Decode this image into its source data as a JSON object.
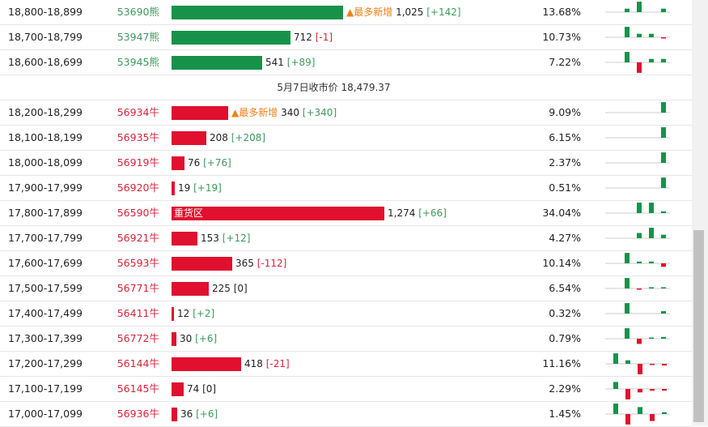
{
  "header_note_label": "▲最多新增",
  "heavy_label": "重货区",
  "colors": {
    "green": "#17924a",
    "red": "#e0102e",
    "note": "#ef7f1a"
  },
  "max_bar_value": 1274,
  "separator": {
    "text": "5月7日收市价 18,479.37"
  },
  "rows": [
    {
      "range": "18,800-18,899",
      "code": "53690熊",
      "side": "bear",
      "value": 1025,
      "value_text": "1,025",
      "change": "[+142]",
      "change_dir": "up",
      "pct": "13.68%",
      "note": "▲最多新增",
      "spark": [
        1,
        3,
        0,
        1
      ],
      "spark_sign": [
        1,
        1,
        1,
        1
      ]
    },
    {
      "range": "18,700-18,799",
      "code": "53947熊",
      "side": "bear",
      "value": 712,
      "value_text": "712",
      "change": "[-1]",
      "change_dir": "dn",
      "pct": "10.73%",
      "spark": [
        3,
        1,
        1,
        0.3
      ],
      "spark_sign": [
        1,
        1,
        1,
        -1
      ]
    },
    {
      "range": "18,600-18,699",
      "code": "53945熊",
      "side": "bear",
      "value": 541,
      "value_text": "541",
      "change": "[+89]",
      "change_dir": "up",
      "pct": "7.22%",
      "spark": [
        3,
        3,
        1,
        1
      ],
      "spark_sign": [
        1,
        -1,
        1,
        1
      ]
    },
    {
      "separator": true
    },
    {
      "range": "18,200-18,299",
      "code": "56934牛",
      "side": "bull",
      "value": 340,
      "value_text": "340",
      "change": "[+340]",
      "change_dir": "up",
      "pct": "9.09%",
      "note": "▲最多新增",
      "spark": [
        0,
        0,
        0,
        3
      ],
      "spark_sign": [
        1,
        1,
        1,
        1
      ]
    },
    {
      "range": "18,100-18,199",
      "code": "56935牛",
      "side": "bull",
      "value": 208,
      "value_text": "208",
      "change": "[+208]",
      "change_dir": "up",
      "pct": "6.15%",
      "spark": [
        0,
        0,
        0,
        3
      ],
      "spark_sign": [
        1,
        1,
        1,
        1
      ]
    },
    {
      "range": "18,000-18,099",
      "code": "56919牛",
      "side": "bull",
      "value": 76,
      "value_text": "76",
      "change": "[+76]",
      "change_dir": "up",
      "pct": "2.37%",
      "spark": [
        0,
        0,
        0,
        3
      ],
      "spark_sign": [
        1,
        1,
        1,
        1
      ]
    },
    {
      "range": "17,900-17,999",
      "code": "56920牛",
      "side": "bull",
      "value": 19,
      "value_text": "19",
      "change": "[+19]",
      "change_dir": "up",
      "pct": "0.51%",
      "spark": [
        0,
        0,
        0,
        3
      ],
      "spark_sign": [
        1,
        1,
        1,
        1
      ]
    },
    {
      "range": "17,800-17,899",
      "code": "56590牛",
      "side": "bull",
      "value": 1274,
      "value_text": "1,274",
      "change": "[+66]",
      "change_dir": "up",
      "pct": "34.04%",
      "heavy": true,
      "spark": [
        0,
        3,
        3,
        0.5
      ],
      "spark_sign": [
        1,
        1,
        1,
        1
      ]
    },
    {
      "range": "17,700-17,799",
      "code": "56921牛",
      "side": "bull",
      "value": 153,
      "value_text": "153",
      "change": "[+12]",
      "change_dir": "up",
      "pct": "4.27%",
      "spark": [
        0,
        1.5,
        3,
        1
      ],
      "spark_sign": [
        1,
        1,
        1,
        1
      ]
    },
    {
      "range": "17,600-17,699",
      "code": "56593牛",
      "side": "bull",
      "value": 365,
      "value_text": "365",
      "change": "[-112]",
      "change_dir": "dn",
      "pct": "10.14%",
      "spark": [
        3,
        0.5,
        0.5,
        1
      ],
      "spark_sign": [
        1,
        1,
        1,
        -1
      ]
    },
    {
      "range": "17,500-17,599",
      "code": "56771牛",
      "side": "bull",
      "value": 225,
      "value_text": "225",
      "change": "[0]",
      "change_dir": "none",
      "pct": "6.54%",
      "spark": [
        3,
        0.3,
        0.3,
        0.3
      ],
      "spark_sign": [
        1,
        -1,
        1,
        1
      ]
    },
    {
      "range": "17,400-17,499",
      "code": "56411牛",
      "side": "bull",
      "value": 12,
      "value_text": "12",
      "change": "[+2]",
      "change_dir": "up",
      "pct": "0.32%",
      "spark": [
        3,
        0,
        0,
        0.7
      ],
      "spark_sign": [
        1,
        1,
        1,
        1
      ]
    },
    {
      "range": "17,300-17,399",
      "code": "56772牛",
      "side": "bull",
      "value": 30,
      "value_text": "30",
      "change": "[+6]",
      "change_dir": "up",
      "pct": "0.79%",
      "spark": [
        3,
        1.5,
        0.3,
        0.5
      ],
      "spark_sign": [
        1,
        -1,
        1,
        1
      ]
    },
    {
      "range": "17,200-17,299",
      "code": "56144牛",
      "side": "bull",
      "value": 418,
      "value_text": "418",
      "change": "[-21]",
      "change_dir": "dn",
      "pct": "11.16%",
      "spark": [
        3,
        1,
        3,
        0.3,
        0.5
      ],
      "spark_sign": [
        1,
        1,
        -1,
        -1,
        -1
      ]
    },
    {
      "range": "17,100-17,199",
      "code": "56145牛",
      "side": "bull",
      "value": 74,
      "value_text": "74",
      "change": "[0]",
      "change_dir": "none",
      "pct": "2.29%",
      "spark": [
        2,
        3,
        1,
        0.5,
        0.5
      ],
      "spark_sign": [
        1,
        -1,
        -1,
        -1,
        -1
      ]
    },
    {
      "range": "17,000-17,099",
      "code": "56936牛",
      "side": "bull",
      "value": 36,
      "value_text": "36",
      "change": "[+6]",
      "change_dir": "up",
      "pct": "1.45%",
      "spark": [
        3,
        3,
        2,
        2,
        0.5
      ],
      "spark_sign": [
        1,
        -1,
        1,
        -1,
        1
      ]
    }
  ],
  "scrollbar": {
    "thumb_position": 0.54,
    "thumb_fraction": 0.45
  }
}
